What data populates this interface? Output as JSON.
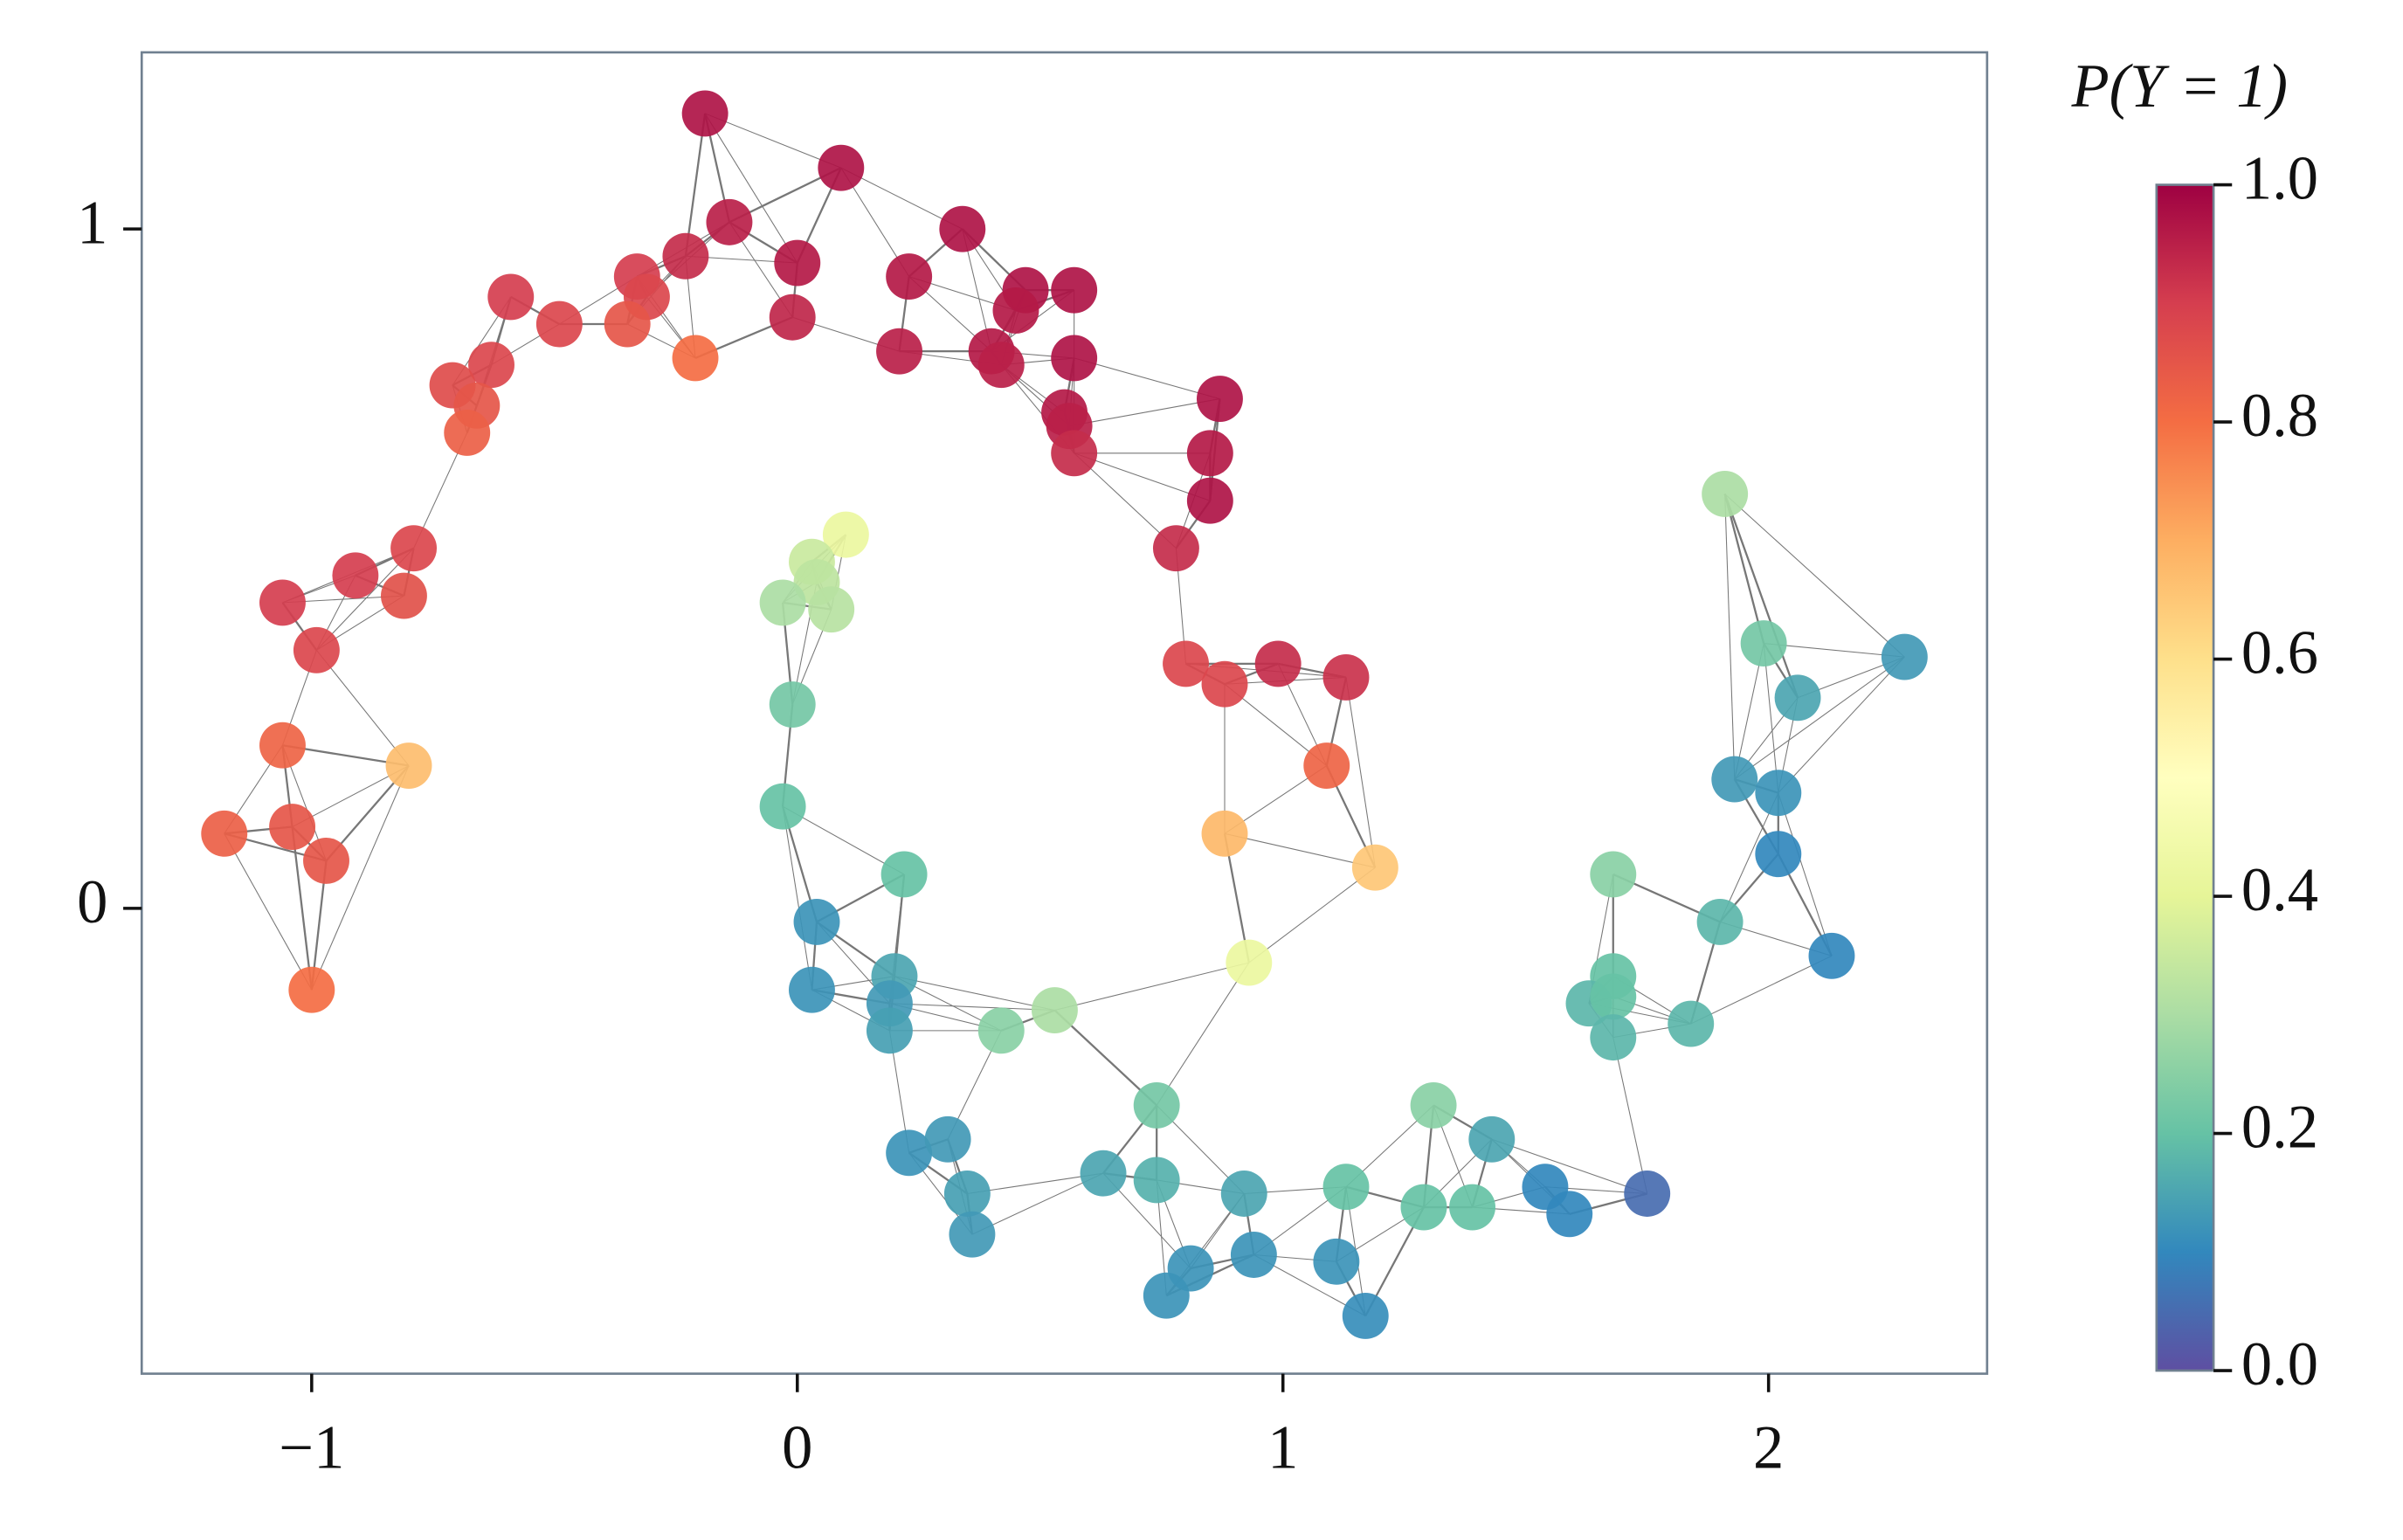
{
  "chart_data": {
    "type": "scatter",
    "x": [
      -0.19,
      0.09,
      -0.14,
      0.34,
      -0.23,
      0.0,
      0.23,
      -0.33,
      0.47,
      0.57,
      -0.31,
      -0.59,
      0.45,
      -0.49,
      -0.35,
      -0.01,
      -0.21,
      0.21,
      0.4,
      0.42,
      0.57,
      -0.63,
      -0.71,
      -0.66,
      0.55,
      0.56,
      -0.68,
      0.57,
      0.87,
      0.85,
      0.85,
      0.78,
      -0.79,
      -0.91,
      -1.06,
      -0.81,
      -0.99,
      0.8,
      0.99,
      1.13,
      0.88,
      -1.06,
      -0.8,
      1.09,
      -1.04,
      -1.18,
      -0.97,
      0.88,
      1.19,
      -1.0,
      0.93,
      0.1,
      0.03,
      0.04,
      -0.03,
      0.07,
      -0.01,
      -0.03,
      0.22,
      0.04,
      0.03,
      0.2,
      0.19,
      0.19,
      0.42,
      0.53,
      0.23,
      0.31,
      0.35,
      0.36,
      0.74,
      0.63,
      0.74,
      0.92,
      0.76,
      0.81,
      0.94,
      1.11,
      1.17,
      1.13,
      1.31,
      1.29,
      1.39,
      1.43,
      1.54,
      1.59,
      1.75,
      1.68,
      1.68,
      1.63,
      1.68,
      1.68,
      1.84,
      1.9,
      2.13,
      2.02,
      1.93,
      2.02,
      2.06,
      1.99,
      2.28,
      1.91
    ],
    "values": [
      1.17,
      1.09,
      1.01,
      1.0,
      0.96,
      0.95,
      0.93,
      0.93,
      0.91,
      0.91,
      0.9,
      0.9,
      0.88,
      0.86,
      0.86,
      0.87,
      0.81,
      0.82,
      0.82,
      0.8,
      0.81,
      0.8,
      0.77,
      0.74,
      0.73,
      0.71,
      0.7,
      0.67,
      0.75,
      0.67,
      0.6,
      0.53,
      0.53,
      0.49,
      0.45,
      0.46,
      0.38,
      0.36,
      0.36,
      0.34,
      0.33,
      0.24,
      0.21,
      0.21,
      0.12,
      0.11,
      0.07,
      0.11,
      0.06,
      -0.12,
      -0.08,
      0.55,
      0.51,
      0.48,
      0.45,
      0.44,
      0.3,
      0.15,
      0.05,
      -0.02,
      -0.12,
      -0.1,
      -0.14,
      -0.18,
      -0.18,
      -0.15,
      -0.36,
      -0.34,
      -0.42,
      -0.48,
      -0.29,
      -0.39,
      -0.4,
      -0.42,
      -0.57,
      -0.53,
      -0.51,
      -0.52,
      -0.6,
      -0.41,
      -0.29,
      -0.44,
      -0.44,
      -0.34,
      -0.41,
      -0.45,
      -0.42,
      0.05,
      -0.1,
      -0.14,
      -0.13,
      -0.19,
      -0.17,
      -0.02,
      -0.07,
      0.08,
      0.19,
      0.17,
      0.31,
      0.39,
      0.37,
      0.61
    ],
    "color_values": [
      0.97,
      0.97,
      0.95,
      0.97,
      0.93,
      0.96,
      0.96,
      0.9,
      0.97,
      0.97,
      0.88,
      0.9,
      0.96,
      0.88,
      0.85,
      0.94,
      0.8,
      0.95,
      0.96,
      0.95,
      0.97,
      0.88,
      0.87,
      0.85,
      0.96,
      0.95,
      0.83,
      0.93,
      0.97,
      0.96,
      0.97,
      0.93,
      0.88,
      0.9,
      0.9,
      0.86,
      0.88,
      0.88,
      0.93,
      0.92,
      0.88,
      0.82,
      0.67,
      0.82,
      0.85,
      0.83,
      0.85,
      0.68,
      0.65,
      0.8,
      0.42,
      0.42,
      0.35,
      0.33,
      0.3,
      0.32,
      0.22,
      0.2,
      0.2,
      0.12,
      0.12,
      0.15,
      0.13,
      0.14,
      0.25,
      0.3,
      0.12,
      0.13,
      0.14,
      0.13,
      0.22,
      0.15,
      0.17,
      0.15,
      0.12,
      0.12,
      0.12,
      0.12,
      0.11,
      0.2,
      0.25,
      0.2,
      0.2,
      0.15,
      0.1,
      0.1,
      0.05,
      0.25,
      0.2,
      0.18,
      0.2,
      0.18,
      0.18,
      0.18,
      0.1,
      0.1,
      0.13,
      0.12,
      0.15,
      0.22,
      0.13,
      0.3
    ],
    "colormap": [
      "#5e4fa2",
      "#3288bd",
      "#66c2a5",
      "#abdda4",
      "#e6f598",
      "#ffffbf",
      "#fee08b",
      "#fdae61",
      "#f46d43",
      "#d53e4f",
      "#9e0142"
    ],
    "xlim": [
      -1.35,
      2.45
    ],
    "ylim": [
      -0.685,
      1.26
    ],
    "xticks": [
      {
        "value": -1,
        "label": "−1"
      },
      0,
      1,
      2
    ],
    "yticks": [
      0,
      1
    ],
    "colorbar_title": "P(Y = 1)",
    "clim": [
      0,
      1
    ],
    "cticks": [
      {
        "value": 0,
        "label": "0.0"
      },
      {
        "value": 0.2,
        "label": "0.2"
      },
      {
        "value": 0.4,
        "label": "0.4"
      },
      {
        "value": 0.6,
        "label": "0.6"
      },
      {
        "value": 0.8,
        "label": "0.8"
      },
      {
        "value": 1,
        "label": "1.0"
      }
    ]
  }
}
